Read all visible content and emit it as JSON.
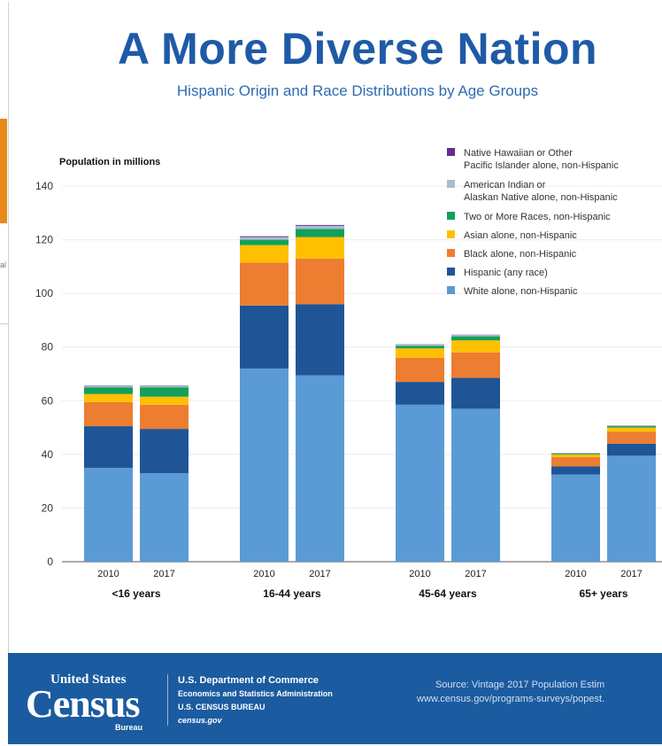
{
  "header": {
    "title": "A More Diverse Nation",
    "subtitle": "Hispanic Origin and Race Distributions by Age Groups"
  },
  "left_cropped_text": "al",
  "chart_data": {
    "type": "bar",
    "stacked": true,
    "ylabel": "Population in millions",
    "ylim": [
      0,
      140
    ],
    "yticks": [
      0,
      20,
      40,
      60,
      80,
      100,
      120,
      140
    ],
    "grid": true,
    "legend_position": "top-right",
    "groups": [
      "<16 years",
      "16-44 years",
      "45-64 years",
      "65+ years"
    ],
    "categories": [
      "2010",
      "2017",
      "2010",
      "2017",
      "2010",
      "2017",
      "2010",
      "2017"
    ],
    "series": [
      {
        "name": "White alone, non-Hispanic",
        "color": "#5b9bd5",
        "values": [
          35,
          33,
          72,
          69.5,
          58.5,
          57,
          32.5,
          39.5
        ]
      },
      {
        "name": "Hispanic (any race)",
        "color": "#1f5597",
        "values": [
          15.5,
          16.5,
          23.5,
          26.5,
          8.5,
          11.5,
          3,
          4.5
        ]
      },
      {
        "name": "Black alone, non-Hispanic",
        "color": "#ed7d31",
        "values": [
          9,
          9,
          16,
          17,
          9,
          9.5,
          3.5,
          4.5
        ]
      },
      {
        "name": "Asian alone, non-Hispanic",
        "color": "#ffc000",
        "values": [
          3,
          3,
          6.5,
          8,
          3.5,
          4.5,
          1,
          1.5
        ]
      },
      {
        "name": "Two or More Races, non-Hispanic",
        "color": "#13a05a",
        "values": [
          2.5,
          3.5,
          2,
          3,
          1,
          1.5,
          0.3,
          0.5
        ]
      },
      {
        "name": "American Indian or\nAlaskan Native alone, non-Hispanic",
        "color": "#a9bccf",
        "values": [
          0.6,
          0.6,
          1,
          1.2,
          0.4,
          0.5,
          0.2,
          0.3
        ]
      },
      {
        "name": "Native Hawaiian or Other\nPacific Islander alone, non-Hispanic",
        "color": "#6a2d8f",
        "values": [
          0.1,
          0.1,
          0.3,
          0.3,
          0.1,
          0.1,
          0.05,
          0.05
        ]
      }
    ]
  },
  "footer": {
    "logo_top": "United States",
    "logo_main": "Census",
    "logo_bottom": "Bureau",
    "dept_line1": "U.S. Department of Commerce",
    "dept_line2": "Economics and Statistics Administration",
    "dept_line3": "U.S. CENSUS BUREAU",
    "dept_line4": "census.gov",
    "source_line1": "Source: Vintage 2017 Population Estim",
    "source_line2": "www.census.gov/programs-surveys/popest."
  }
}
